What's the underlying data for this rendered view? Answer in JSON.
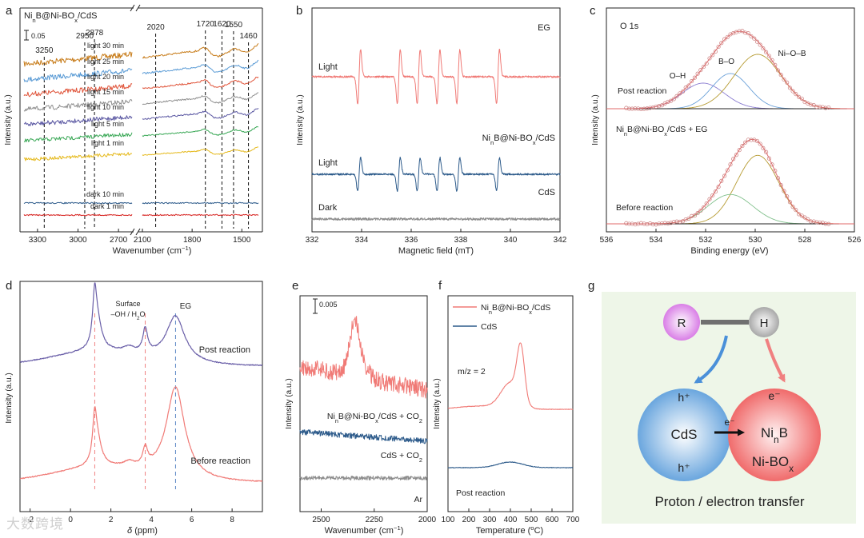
{
  "colors": {
    "red": "#e53935",
    "navy": "#2c5a8a",
    "gray": "#8c8c8c",
    "salmon": "#f08080",
    "blue_dash": "#5a86c5",
    "olive": "#b69b32",
    "green": "#7fbf8a",
    "purple": "#8a7cd0"
  },
  "watermark": "大数跨境",
  "panels": {
    "a": {
      "letter": "a",
      "label": "NinB@Ni-BOx/CdS",
      "scale": "0.05"
    },
    "b": {
      "letter": "b"
    },
    "c": {
      "letter": "c",
      "label": "O 1s"
    },
    "d": {
      "letter": "d"
    },
    "e": {
      "letter": "e",
      "scale": "0.005"
    },
    "f": {
      "letter": "f",
      "legend": [
        "NinB@Ni-BOx/CdS",
        "CdS"
      ],
      "mz": "m/z = 2",
      "note": "Post reaction"
    },
    "g": {
      "letter": "g",
      "R": "R",
      "H": "H",
      "h_plus": "h⁺",
      "h_plus2": "h⁺",
      "e_minus": "e⁻",
      "e_arrow": "e⁻",
      "cds": "CdS",
      "ninb": "NinB",
      "nibox": "Ni-BOx",
      "caption": "Proton / electron transfer"
    }
  },
  "chart_data": [
    {
      "id": "a",
      "type": "line",
      "title": "NinB@Ni-BOx/CdS",
      "xlabel": "Wavenumber (cm⁻¹)",
      "ylabel": "Intensity (a.u.)",
      "scale_bar": "0.05",
      "x_segments": [
        [
          3400,
          2600
        ],
        [
          2100,
          1400
        ]
      ],
      "xticks": [
        "3300",
        "3000",
        "2700",
        "2100",
        "1800",
        "1500"
      ],
      "marker_lines": [
        3250,
        2950,
        2878,
        2020,
        1720,
        1620,
        1550,
        1460
      ],
      "marker_labels": [
        "3250",
        "2950",
        "2878",
        "2020",
        "1720",
        "1620",
        "1550",
        "1460"
      ],
      "series": [
        {
          "name": "light 30 min",
          "color": "#c77b18"
        },
        {
          "name": "light 25 min",
          "color": "#5a9bd5"
        },
        {
          "name": "light 20 min",
          "color": "#e0553b"
        },
        {
          "name": "light 15 min",
          "color": "#8f8f8f"
        },
        {
          "name": "light 10 min",
          "color": "#5a57a2"
        },
        {
          "name": "light 5 min",
          "color": "#3aa856"
        },
        {
          "name": "light 1 min",
          "color": "#e5b91c"
        },
        {
          "name": "dark 10 min",
          "color": "#2c5a8a"
        },
        {
          "name": "dark 1 min",
          "color": "#d6201d"
        }
      ]
    },
    {
      "id": "b",
      "type": "line",
      "xlabel": "Magnetic field (mT)",
      "ylabel": "Intensity (a.u.)",
      "xlim": [
        332,
        342
      ],
      "xticks": [
        332,
        334,
        336,
        338,
        340,
        342
      ],
      "dmpo_peaks_mT": [
        333.9,
        335.5,
        336.3,
        337.1,
        337.9,
        339.5
      ],
      "annotations": [
        "EG",
        "Light",
        "Light",
        "Dark"
      ],
      "series": [
        {
          "name": "NinB@Ni-BOx/CdS",
          "color": "#f07a76"
        },
        {
          "name": "CdS",
          "color": "#2c5a8a"
        },
        {
          "name": "Dark",
          "color": "#8c8c8c"
        }
      ]
    },
    {
      "id": "c",
      "type": "line",
      "title": "O 1s",
      "xlabel": "Binding energy (eV)",
      "ylabel": "Intensity (a.u.)",
      "xlim": [
        536,
        526
      ],
      "xticks": [
        536,
        534,
        532,
        530,
        528,
        526
      ],
      "components": [
        "O–H",
        "B–O",
        "Ni–O–B"
      ],
      "component_centers_eV": {
        "O–H": 532.1,
        "B–O": 531.0,
        "Ni–O–B": 529.9
      },
      "series": [
        {
          "name": "Post reaction"
        },
        {
          "name": "NinB@Ni-BOx/CdS + EG"
        },
        {
          "name": "Before reaction"
        }
      ]
    },
    {
      "id": "d",
      "type": "line",
      "xlabel": "δ (ppm)",
      "ylabel": "Intensity (a.u.)",
      "xlim": [
        -2.5,
        9.5
      ],
      "xticks": [
        -2,
        0,
        2,
        4,
        6,
        8
      ],
      "annotations": [
        "Surface",
        "–OH / H₂O",
        "EG"
      ],
      "peak_ppm": [
        1.2,
        3.7,
        5.2
      ],
      "series": [
        {
          "name": "Post reaction",
          "color": "#6a5fa8"
        },
        {
          "name": "Before reaction",
          "color": "#f07a76"
        }
      ]
    },
    {
      "id": "e",
      "type": "line",
      "xlabel": "Wavenumber (cm⁻¹)",
      "ylabel": "Intensity (a.u.)",
      "scale_bar": "0.005",
      "xlim": [
        2600,
        2000
      ],
      "xticks": [
        2500,
        2250,
        2000
      ],
      "series": [
        {
          "name": "NinB@Ni-BOx/CdS + CO2",
          "color": "#f07a76"
        },
        {
          "name": "CdS + CO2",
          "color": "#2c5a8a"
        },
        {
          "name": "Ar",
          "color": "#8c8c8c"
        }
      ]
    },
    {
      "id": "f",
      "type": "line",
      "xlabel": "Temperature (°C)",
      "ylabel": "Intensity (a.u.)",
      "xlim": [
        100,
        700
      ],
      "xticks": [
        100,
        200,
        300,
        400,
        500,
        600,
        700
      ],
      "annotations": [
        "m/z = 2",
        "Post reaction"
      ],
      "series": [
        {
          "name": "NinB@Ni-BOx/CdS",
          "color": "#f07a76",
          "peak_C": 450
        },
        {
          "name": "CdS",
          "color": "#2c5a8a",
          "peak_C": 400
        }
      ]
    }
  ]
}
